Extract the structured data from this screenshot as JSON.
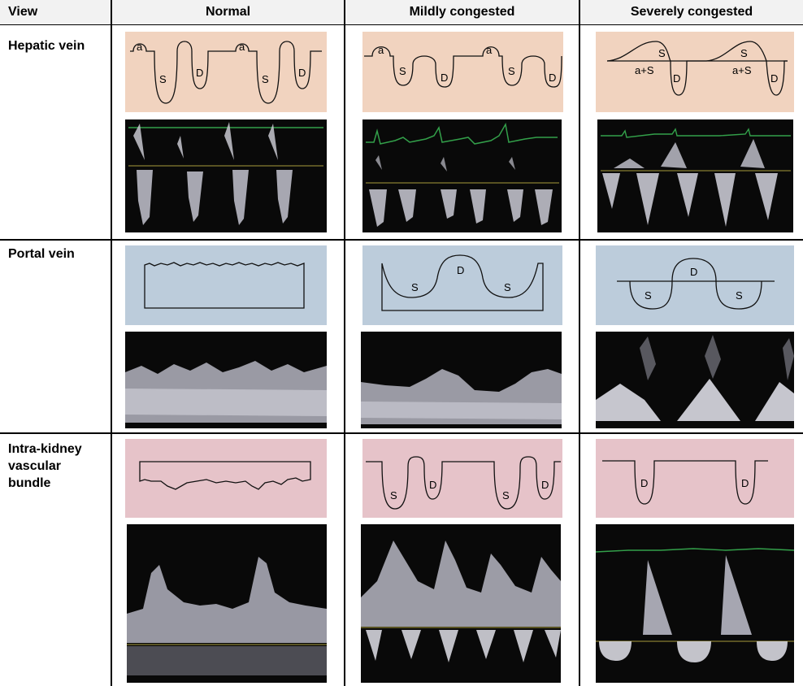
{
  "header": {
    "view": "View",
    "columns": [
      "Normal",
      "Mildly congested",
      "Severely congested"
    ]
  },
  "rows": [
    {
      "label": "Hepatic vein",
      "schematic_color": "#f1d3bf"
    },
    {
      "label": "Portal vein",
      "schematic_color": "#bcccdb"
    },
    {
      "label": "Intra-kidney\nvascular\nbundle",
      "schematic_color": "#e6c3c9"
    }
  ],
  "wave_labels": {
    "a": "a",
    "s": "S",
    "d": "D",
    "a_plus_s": "a+S"
  },
  "colors": {
    "ecg_trace": "#33a04a",
    "baseline": "#a69a3c",
    "grid_line": "#000000",
    "header_bg": "#f2f2f2"
  }
}
